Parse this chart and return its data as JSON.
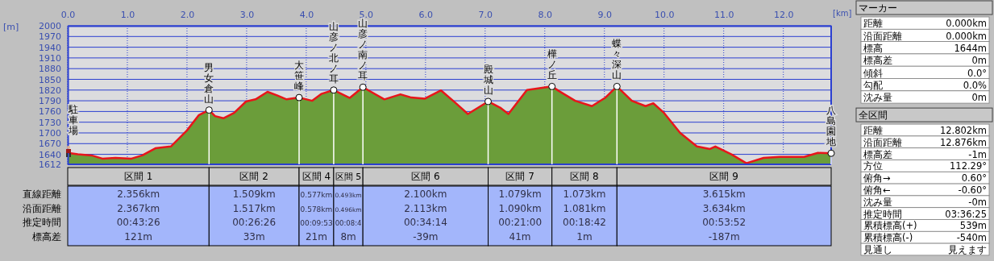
{
  "chart_data": [
    {
      "type": "area",
      "xlabel": "[km]",
      "ylabel": "[m]",
      "x": [
        0,
        0.17,
        0.4,
        0.58,
        0.8,
        1.07,
        1.25,
        1.47,
        1.73,
        2.0,
        2.2,
        2.37,
        2.47,
        2.61,
        2.79,
        2.99,
        3.15,
        3.35,
        3.51,
        3.67,
        3.88,
        4.1,
        4.25,
        4.46,
        4.73,
        4.95,
        5.31,
        5.58,
        5.76,
        5.99,
        6.26,
        6.49,
        6.71,
        7.05,
        7.25,
        7.39,
        7.7,
        8.12,
        8.24,
        8.51,
        8.79,
        9.01,
        9.21,
        9.46,
        9.69,
        9.82,
        10.0,
        10.27,
        10.55,
        10.77,
        10.86,
        11.13,
        11.38,
        11.67,
        11.94,
        12.35,
        12.58,
        12.802
      ],
      "series": [
        {
          "color": "#6b9d3a",
          "values": [
            1644,
            1640,
            1637,
            1628,
            1630,
            1628,
            1637,
            1657,
            1662,
            1707,
            1750,
            1764,
            1747,
            1741,
            1756,
            1788,
            1794,
            1815,
            1805,
            1794,
            1799,
            1790,
            1809,
            1820,
            1798,
            1828,
            1794,
            1808,
            1799,
            1796,
            1819,
            1786,
            1753,
            1788,
            1771,
            1753,
            1820,
            1830,
            1817,
            1790,
            1775,
            1798,
            1830,
            1790,
            1775,
            1783,
            1756,
            1700,
            1662,
            1655,
            1662,
            1640,
            1615,
            1630,
            1633,
            1633,
            1644,
            1643
          ]
        },
        {
          "type": "line",
          "color": "#e8151a",
          "values": [
            1644,
            1640,
            1637,
            1628,
            1630,
            1628,
            1637,
            1657,
            1662,
            1707,
            1750,
            1764,
            1747,
            1741,
            1756,
            1788,
            1794,
            1815,
            1805,
            1794,
            1799,
            1790,
            1809,
            1820,
            1798,
            1828,
            1794,
            1808,
            1799,
            1796,
            1819,
            1786,
            1753,
            1788,
            1771,
            1753,
            1820,
            1830,
            1817,
            1790,
            1775,
            1798,
            1830,
            1790,
            1775,
            1783,
            1756,
            1700,
            1662,
            1655,
            1662,
            1640,
            1615,
            1630,
            1633,
            1633,
            1644,
            1643
          ]
        }
      ],
      "xlim": [
        0,
        12.802
      ],
      "ylim": [
        1612,
        2000
      ],
      "xticks": [
        {
          "value": 0,
          "label": "0.0"
        },
        {
          "value": 1,
          "label": "1.0"
        },
        {
          "value": 2,
          "label": "2.0"
        },
        {
          "value": 3,
          "label": "3.0"
        },
        {
          "value": 4,
          "label": "4.0"
        },
        {
          "value": 5,
          "label": "5.0"
        },
        {
          "value": 6,
          "label": "6.0"
        },
        {
          "value": 7,
          "label": "7.0"
        },
        {
          "value": 8,
          "label": "8.0"
        },
        {
          "value": 9,
          "label": "9.0"
        },
        {
          "value": 10,
          "label": "10.0"
        },
        {
          "value": 11,
          "label": "11.0"
        },
        {
          "value": 12,
          "label": "12.0"
        }
      ],
      "yticks": [
        1612,
        1640,
        1670,
        1700,
        1730,
        1760,
        1790,
        1820,
        1850,
        1880,
        1910,
        1940,
        1970,
        2000
      ],
      "grid": true,
      "annotations": [
        {
          "text": "駐車場",
          "x": 0,
          "y": 1644
        },
        {
          "text": "男女倉山",
          "x": 2.37,
          "y": 1764
        },
        {
          "text": "大笹峰",
          "x": 3.88,
          "y": 1799
        },
        {
          "text": "山彦ノ北ノ耳",
          "x": 4.46,
          "y": 1820
        },
        {
          "text": "山彦ノ南ノ耳",
          "x": 4.95,
          "y": 1828
        },
        {
          "text": "殿城山",
          "x": 7.05,
          "y": 1788
        },
        {
          "text": "樺ノ丘",
          "x": 8.12,
          "y": 1830
        },
        {
          "text": "蝶々深山",
          "x": 9.21,
          "y": 1830
        },
        {
          "text": "八島園地",
          "x": 12.802,
          "y": 1643
        }
      ]
    },
    {
      "type": "other",
      "categories": [
        "区間 1",
        "区間 2",
        "区間 4",
        "区間 5",
        "区間 6",
        "区間 7",
        "区間 8",
        "区間 9"
      ],
      "y_categories": [
        "直線距離",
        "沿面距離",
        "推定時間",
        "標高差"
      ],
      "cell_labels": [
        [
          "2.356km",
          "1.509km",
          "0.577km",
          "0.493km",
          "2.100km",
          "1.079km",
          "1.073km",
          "3.615km"
        ],
        [
          "2.367km",
          "1.517km",
          "0.578km",
          "0.496km",
          "2.113km",
          "1.090km",
          "1.081km",
          "3.634km"
        ],
        [
          "00:43:26",
          "00:26:26",
          "00:09:53",
          "00:08:4",
          "00:34:14",
          "00:21:00",
          "00:18:42",
          "00:53:52"
        ],
        [
          "121m",
          "33m",
          "21m",
          "8m",
          "-39m",
          "41m",
          "1m",
          "-187m"
        ]
      ]
    },
    {
      "type": "other",
      "title": "マーカー",
      "y_categories": [
        "距離",
        "沿面距離",
        "標高",
        "標高差",
        "傾斜",
        "勾配",
        "沈み量"
      ],
      "cell_labels": [
        "0.000km",
        "0.000km",
        "1644m",
        "0m",
        "0.0°",
        "0.0%",
        "0m"
      ]
    },
    {
      "type": "other",
      "title": "全区間",
      "y_categories": [
        "距離",
        "沿面距離",
        "標高差",
        "方位",
        "俯角→",
        "俯角←",
        "沈み量",
        "推定時間",
        "累積標高(+)",
        "累積標高(-)",
        "見通し"
      ],
      "cell_labels": [
        "12.802km",
        "12.876km",
        "-1m",
        "112.29°",
        "0.60°",
        "-0.60°",
        "-0m",
        "03:36:25",
        "539m",
        "-540m",
        "見えます"
      ]
    }
  ]
}
